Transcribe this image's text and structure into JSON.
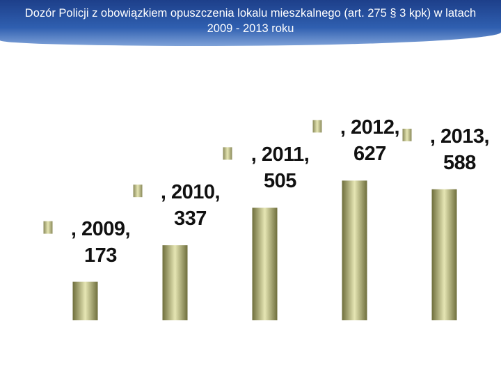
{
  "chart_data": {
    "type": "bar",
    "title": "Dozór Policji z obowiązkiem opuszczenia lokalu mieszkalnego  (art. 275 § 3 kpk) w latach 2009 - 2013 roku",
    "categories": [
      "2009",
      "2010",
      "2011",
      "2012",
      "2013"
    ],
    "values": [
      173,
      337,
      505,
      627,
      588
    ],
    "value_labels": [
      ", 2009, 173",
      ", 2010, 337",
      ", 2011, 505",
      ", 2012, 627",
      ", 2013, 588"
    ],
    "color": "#e6e6b4",
    "ylim": [
      0,
      1000
    ]
  }
}
